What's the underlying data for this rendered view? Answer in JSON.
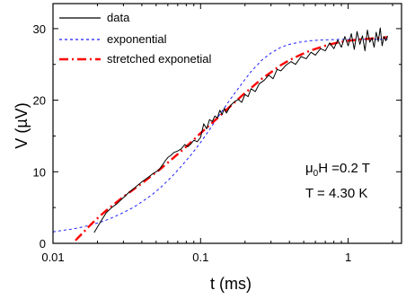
{
  "chart_data": {
    "type": "line",
    "title": "",
    "xlabel": "t (ms)",
    "ylabel": "V (µV)",
    "x_scale": "log",
    "xlim": [
      0.01,
      2.3
    ],
    "ylim": [
      0,
      33.5
    ],
    "x_ticks": [
      {
        "value": 0.01,
        "label": "0.01"
      },
      {
        "value": 0.1,
        "label": "0.1"
      },
      {
        "value": 1,
        "label": "1"
      }
    ],
    "y_ticks": [
      {
        "value": 0,
        "label": "0"
      },
      {
        "value": 10,
        "label": "10"
      },
      {
        "value": 20,
        "label": "20"
      },
      {
        "value": 30,
        "label": "30"
      }
    ],
    "grid": false,
    "legend": {
      "position": "top-left",
      "entries": [
        {
          "label": "data",
          "color": "#000000",
          "style": "solid"
        },
        {
          "label": "exponential",
          "color": "#1a1aff",
          "style": "dashed"
        },
        {
          "label": "stretched exponetial",
          "color": "#ff0000",
          "style": "dash-dot"
        }
      ]
    },
    "annotations": {
      "field_prefix": "μ",
      "field_sub": "0",
      "field_rest": "H =0.2 T",
      "temperature": "T = 4.30 K"
    },
    "series": [
      {
        "name": "data",
        "color": "#000000",
        "x": [
          0.019,
          0.021,
          0.023,
          0.025,
          0.027,
          0.03,
          0.033,
          0.036,
          0.04,
          0.044,
          0.048,
          0.052,
          0.055,
          0.058,
          0.06,
          0.063,
          0.066,
          0.07,
          0.074,
          0.078,
          0.082,
          0.086,
          0.09,
          0.095,
          0.1,
          0.105,
          0.11,
          0.115,
          0.12,
          0.125,
          0.13,
          0.135,
          0.14,
          0.145,
          0.15,
          0.16,
          0.17,
          0.18,
          0.19,
          0.2,
          0.21,
          0.22,
          0.235,
          0.25,
          0.27,
          0.29,
          0.31,
          0.33,
          0.35,
          0.38,
          0.41,
          0.44,
          0.48,
          0.52,
          0.56,
          0.6,
          0.65,
          0.7,
          0.75,
          0.8,
          0.85,
          0.9,
          0.95,
          1.0,
          1.05,
          1.1,
          1.15,
          1.2,
          1.25,
          1.3,
          1.35,
          1.4,
          1.45,
          1.5,
          1.55,
          1.6,
          1.65,
          1.7,
          1.75,
          1.8,
          1.85
        ],
        "y": [
          1.5,
          3.0,
          4.3,
          5.0,
          5.5,
          6.4,
          7.2,
          7.8,
          8.6,
          9.2,
          9.8,
          10.2,
          10.9,
          11.6,
          12.0,
          12.3,
          12.7,
          12.9,
          13.2,
          13.8,
          13.5,
          13.9,
          14.4,
          14.2,
          14.8,
          16.7,
          16.0,
          17.3,
          17.0,
          17.8,
          17.5,
          18.6,
          18.0,
          18.9,
          18.2,
          19.3,
          19.8,
          20.1,
          19.7,
          20.8,
          20.5,
          21.6,
          21.2,
          22.3,
          22.8,
          23.5,
          23.0,
          24.3,
          24.1,
          24.9,
          25.4,
          25.0,
          26.1,
          25.8,
          26.7,
          26.3,
          27.2,
          26.9,
          28.0,
          27.2,
          28.4,
          27.4,
          28.9,
          27.6,
          29.3,
          27.1,
          29.6,
          27.8,
          29.0,
          26.9,
          29.8,
          28.1,
          28.7,
          27.4,
          29.5,
          28.2,
          30.1,
          27.6,
          28.9,
          28.3,
          29.0
        ]
      },
      {
        "name": "exponential",
        "color": "#1a1aff",
        "x": [
          0.01,
          0.0115,
          0.0135,
          0.016,
          0.019,
          0.022,
          0.026,
          0.03,
          0.035,
          0.04,
          0.047,
          0.055,
          0.065,
          0.075,
          0.088,
          0.1,
          0.115,
          0.135,
          0.16,
          0.19,
          0.22,
          0.26,
          0.3,
          0.35,
          0.4,
          0.47,
          0.55,
          0.65,
          0.75,
          0.88,
          1.0,
          1.2,
          1.4,
          1.6,
          1.85
        ],
        "y": [
          1.6,
          1.8,
          2.0,
          2.3,
          2.7,
          3.1,
          3.7,
          4.3,
          5.0,
          5.8,
          6.8,
          8.0,
          9.5,
          10.9,
          12.6,
          14.1,
          15.9,
          18.0,
          20.2,
          22.3,
          24.0,
          25.6,
          26.6,
          27.4,
          27.8,
          28.1,
          28.3,
          28.4,
          28.45,
          28.5,
          28.5,
          28.5,
          28.5,
          28.5,
          28.5
        ]
      },
      {
        "name": "stretched exponetial",
        "color": "#ff0000",
        "x": [
          0.0142,
          0.016,
          0.018,
          0.02,
          0.023,
          0.026,
          0.03,
          0.035,
          0.04,
          0.047,
          0.055,
          0.065,
          0.075,
          0.088,
          0.1,
          0.115,
          0.135,
          0.16,
          0.19,
          0.22,
          0.26,
          0.3,
          0.35,
          0.4,
          0.47,
          0.55,
          0.65,
          0.75,
          0.88,
          1.0,
          1.2,
          1.4,
          1.6,
          1.85
        ],
        "y": [
          0.4,
          1.5,
          2.6,
          3.5,
          4.6,
          5.5,
          6.5,
          7.5,
          8.4,
          9.5,
          10.6,
          11.9,
          13.0,
          14.3,
          15.4,
          16.5,
          17.8,
          19.2,
          20.6,
          21.7,
          23.0,
          23.9,
          24.9,
          25.6,
          26.3,
          26.9,
          27.4,
          27.8,
          28.1,
          28.3,
          28.5,
          28.6,
          28.7,
          28.8
        ]
      }
    ]
  }
}
